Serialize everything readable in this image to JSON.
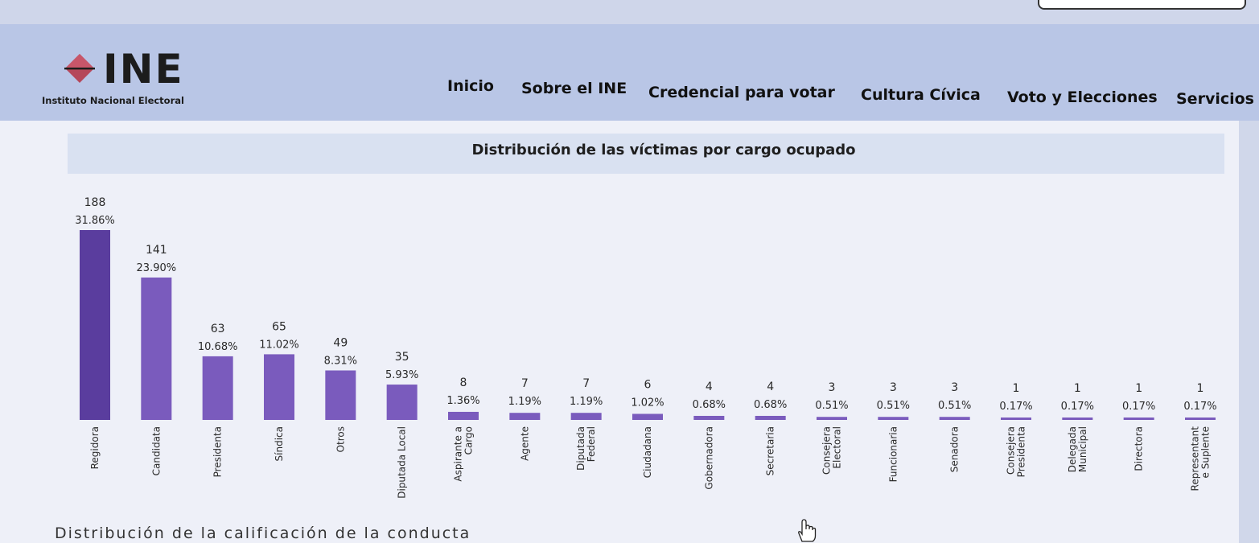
{
  "header": {
    "logo_text": "INE",
    "logo_subtitle": "Instituto Nacional Electoral",
    "nav": [
      "Inicio",
      "Sobre el INE",
      "Credencial para votar",
      "Cultura Cívica",
      "Voto y Elecciones",
      "Servicios"
    ]
  },
  "colors": {
    "bar": "#7a5bbd",
    "bar_highlight": "#5a3d9e",
    "header_bg": "#b9c6e6"
  },
  "chart_data": {
    "type": "bar",
    "title": "Distribución de las víctimas por cargo ocupado",
    "categories": [
      "Regidora",
      "Candidata",
      "Presidenta",
      "Síndica",
      "Otros",
      "Diputada Local",
      "Aspirante a Cargo",
      "Agente",
      "Diputada Federal",
      "Ciudadana",
      "Gobernadora",
      "Secretaria",
      "Consejera Electoral",
      "Funcionaria",
      "Senadora",
      "Consejera Presidenta",
      "Delegada Municipal",
      "Directora",
      "Representante Suplente"
    ],
    "category_lines": [
      [
        "Regidora"
      ],
      [
        "Candidata"
      ],
      [
        "Presidenta"
      ],
      [
        "Síndica"
      ],
      [
        "Otros"
      ],
      [
        "Diputada Local"
      ],
      [
        "Aspirante a",
        "Cargo"
      ],
      [
        "Agente"
      ],
      [
        "Diputada",
        "Federal"
      ],
      [
        "Ciudadana"
      ],
      [
        "Gobernadora"
      ],
      [
        "Secretaria"
      ],
      [
        "Consejera",
        "Electoral"
      ],
      [
        "Funcionaria"
      ],
      [
        "Senadora"
      ],
      [
        "Consejera",
        "Presidenta"
      ],
      [
        "Delegada",
        "Municipal"
      ],
      [
        "Directora"
      ],
      [
        "Representant",
        "e Suplente"
      ]
    ],
    "values": [
      188,
      141,
      63,
      65,
      49,
      35,
      8,
      7,
      7,
      6,
      4,
      4,
      3,
      3,
      3,
      1,
      1,
      1,
      1
    ],
    "percent_labels": [
      "31.86%",
      "23.90%",
      "10.68%",
      "11.02%",
      "8.31%",
      "5.93%",
      "1.36%",
      "1.19%",
      "1.19%",
      "1.02%",
      "0.68%",
      "0.68%",
      "0.51%",
      "0.51%",
      "0.51%",
      "0.17%",
      "0.17%",
      "0.17%",
      "0.17%"
    ],
    "ylim": [
      0,
      188
    ]
  },
  "next_section_title": "Distribución de la calificación de la conducta"
}
